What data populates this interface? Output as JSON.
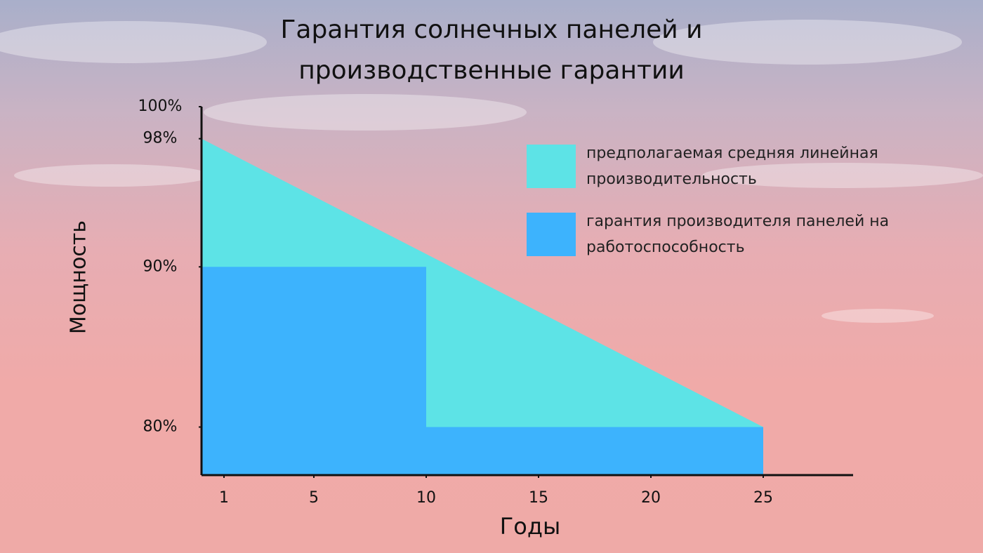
{
  "chart_data": {
    "type": "area",
    "title": "Гарантия солнечных панелей и производственные гарантии",
    "x_label": "Годы",
    "y_label": "Мощность",
    "xlim": [
      0,
      29
    ],
    "xticks": [
      1,
      5,
      10,
      15,
      20,
      25
    ],
    "ylim": [
      77,
      100
    ],
    "yticks": [
      {
        "value": 100,
        "label": "100%"
      },
      {
        "value": 98,
        "label": "98%"
      },
      {
        "value": 90,
        "label": "90%"
      },
      {
        "value": 80,
        "label": "80%"
      }
    ],
    "grid": false,
    "legend": "upper right",
    "series": [
      {
        "name": "предполагаемая средняя линейная производительность",
        "color": "#5de3e6",
        "x": [
          0,
          25
        ],
        "values": [
          98,
          80
        ]
      },
      {
        "name": "гарантия производителя панелей на работоспособность",
        "color": "#3db3fd",
        "x": [
          0,
          10,
          10,
          25
        ],
        "values": [
          90,
          90,
          80,
          80
        ]
      }
    ]
  }
}
